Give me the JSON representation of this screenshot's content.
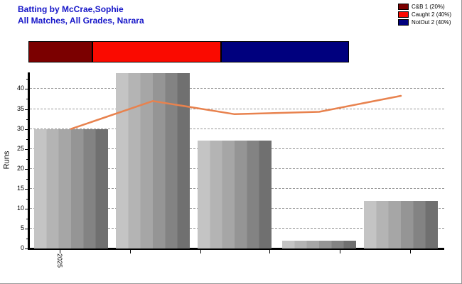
{
  "header": {
    "title": "Batting by McCrae,Sophie",
    "subtitle": "All Matches, All Grades, Narara",
    "title_color": "#1515C8"
  },
  "legend": {
    "position": "top-right",
    "items": [
      {
        "label": "C&B 1 (20%)",
        "color": "#7B0000"
      },
      {
        "label": "Caught 2 (40%)",
        "color": "#FA0A00"
      },
      {
        "label": "NotOut 2 (40%)",
        "color": "#00007E"
      }
    ]
  },
  "dismissal_bar": {
    "segments": [
      {
        "name": "C&B",
        "percent": 20,
        "color": "#7B0000"
      },
      {
        "name": "Caught",
        "percent": 40,
        "color": "#FA0A00"
      },
      {
        "name": "NotOut",
        "percent": 40,
        "color": "#00007E"
      }
    ]
  },
  "chart_data": {
    "type": "bar",
    "title": "Batting by McCrae,Sophie",
    "subtitle": "All Matches, All Grades, Narara",
    "ylabel": "Runs",
    "xlabel": "",
    "x_axis_tick_label": "2025",
    "ylim": [
      0,
      44
    ],
    "yticks": [
      0,
      5,
      10,
      15,
      20,
      25,
      30,
      35,
      40
    ],
    "grid": "horizontal-dashed",
    "legend_position": "top-right",
    "series": [
      {
        "name": "runs-per-innings",
        "type": "column",
        "values": [
          30,
          44,
          27,
          2,
          12
        ],
        "bar_gradient": [
          "#C4C4C4",
          "#B4B4B4",
          "#A6A6A6",
          "#959595",
          "#838383",
          "#707070"
        ]
      },
      {
        "name": "running-average",
        "type": "line",
        "color": "#E8824E",
        "values": [
          30,
          37,
          33.7,
          34.3,
          38.3
        ]
      }
    ]
  }
}
